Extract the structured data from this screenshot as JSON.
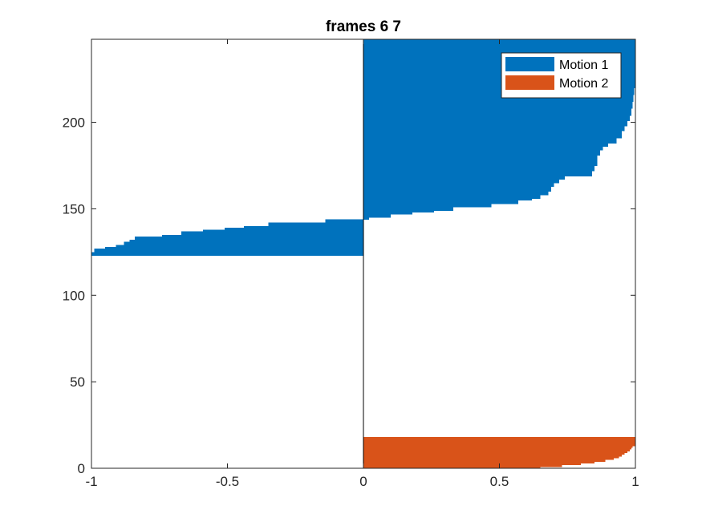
{
  "chart_data": {
    "type": "bar",
    "orientation": "horizontal",
    "title": "frames 6 7",
    "xlabel": "",
    "ylabel": "",
    "xlim": [
      -1,
      1
    ],
    "ylim": [
      0,
      248
    ],
    "xticks": [
      -1,
      -0.5,
      0,
      0.5,
      1
    ],
    "xtick_labels": [
      "-1",
      "-0.5",
      "0",
      "0.5",
      "1"
    ],
    "yticks": [
      0,
      50,
      100,
      150,
      200
    ],
    "ytick_labels": [
      "0",
      "50",
      "100",
      "150",
      "200"
    ],
    "grid": false,
    "legend": {
      "placement": "top-right"
    },
    "series": [
      {
        "name": "Motion 1",
        "color": "#0072BD",
        "segments": [
          {
            "y": [
              123,
              125
            ],
            "x": -1.0
          },
          {
            "y": [
              125,
              127
            ],
            "x": -0.99
          },
          {
            "y": [
              127,
              128
            ],
            "x": -0.95
          },
          {
            "y": [
              128,
              129
            ],
            "x": -0.91
          },
          {
            "y": [
              129,
              131
            ],
            "x": -0.88
          },
          {
            "y": [
              131,
              132
            ],
            "x": -0.86
          },
          {
            "y": [
              132,
              134
            ],
            "x": -0.84
          },
          {
            "y": [
              134,
              135
            ],
            "x": -0.74
          },
          {
            "y": [
              135,
              137
            ],
            "x": -0.67
          },
          {
            "y": [
              137,
              138
            ],
            "x": -0.59
          },
          {
            "y": [
              138,
              139
            ],
            "x": -0.51
          },
          {
            "y": [
              139,
              140
            ],
            "x": -0.44
          },
          {
            "y": [
              140,
              142
            ],
            "x": -0.35
          },
          {
            "y": [
              142,
              144
            ],
            "x": -0.14
          },
          {
            "y": [
              144,
              145
            ],
            "x": 0.02
          },
          {
            "y": [
              145,
              147
            ],
            "x": 0.1
          },
          {
            "y": [
              147,
              148
            ],
            "x": 0.18
          },
          {
            "y": [
              148,
              149
            ],
            "x": 0.26
          },
          {
            "y": [
              149,
              151
            ],
            "x": 0.33
          },
          {
            "y": [
              151,
              153
            ],
            "x": 0.47
          },
          {
            "y": [
              153,
              155
            ],
            "x": 0.57
          },
          {
            "y": [
              155,
              156
            ],
            "x": 0.62
          },
          {
            "y": [
              156,
              158
            ],
            "x": 0.65
          },
          {
            "y": [
              158,
              160
            ],
            "x": 0.68
          },
          {
            "y": [
              160,
              163
            ],
            "x": 0.69
          },
          {
            "y": [
              163,
              165
            ],
            "x": 0.7
          },
          {
            "y": [
              165,
              167
            ],
            "x": 0.72
          },
          {
            "y": [
              167,
              169
            ],
            "x": 0.74
          },
          {
            "y": [
              169,
              172
            ],
            "x": 0.84
          },
          {
            "y": [
              172,
              175
            ],
            "x": 0.85
          },
          {
            "y": [
              175,
              178
            ],
            "x": 0.86
          },
          {
            "y": [
              178,
              181
            ],
            "x": 0.86
          },
          {
            "y": [
              181,
              184
            ],
            "x": 0.87
          },
          {
            "y": [
              184,
              186
            ],
            "x": 0.88
          },
          {
            "y": [
              186,
              188
            ],
            "x": 0.9
          },
          {
            "y": [
              188,
              191
            ],
            "x": 0.93
          },
          {
            "y": [
              191,
              195
            ],
            "x": 0.95
          },
          {
            "y": [
              195,
              198
            ],
            "x": 0.96
          },
          {
            "y": [
              198,
              201
            ],
            "x": 0.97
          },
          {
            "y": [
              201,
              204
            ],
            "x": 0.98
          },
          {
            "y": [
              204,
              208
            ],
            "x": 0.985
          },
          {
            "y": [
              208,
              212
            ],
            "x": 0.99
          },
          {
            "y": [
              212,
              216
            ],
            "x": 0.993
          },
          {
            "y": [
              216,
              220
            ],
            "x": 0.996
          },
          {
            "y": [
              220,
              225
            ],
            "x": 0.998
          },
          {
            "y": [
              225,
              248
            ],
            "x": 1.0
          }
        ]
      },
      {
        "name": "Motion 2",
        "color": "#D95319",
        "segments": [
          {
            "y": [
              0,
              1
            ],
            "x": 0.65
          },
          {
            "y": [
              1,
              2
            ],
            "x": 0.73
          },
          {
            "y": [
              2,
              3
            ],
            "x": 0.8
          },
          {
            "y": [
              3,
              4
            ],
            "x": 0.85
          },
          {
            "y": [
              4,
              5
            ],
            "x": 0.89
          },
          {
            "y": [
              5,
              6
            ],
            "x": 0.92
          },
          {
            "y": [
              6,
              7
            ],
            "x": 0.94
          },
          {
            "y": [
              7,
              8
            ],
            "x": 0.95
          },
          {
            "y": [
              8,
              9
            ],
            "x": 0.96
          },
          {
            "y": [
              9,
              10
            ],
            "x": 0.97
          },
          {
            "y": [
              10,
              11
            ],
            "x": 0.98
          },
          {
            "y": [
              11,
              12
            ],
            "x": 0.985
          },
          {
            "y": [
              12,
              13
            ],
            "x": 0.99
          },
          {
            "y": [
              13,
              18
            ],
            "x": 1.0
          }
        ]
      }
    ]
  }
}
